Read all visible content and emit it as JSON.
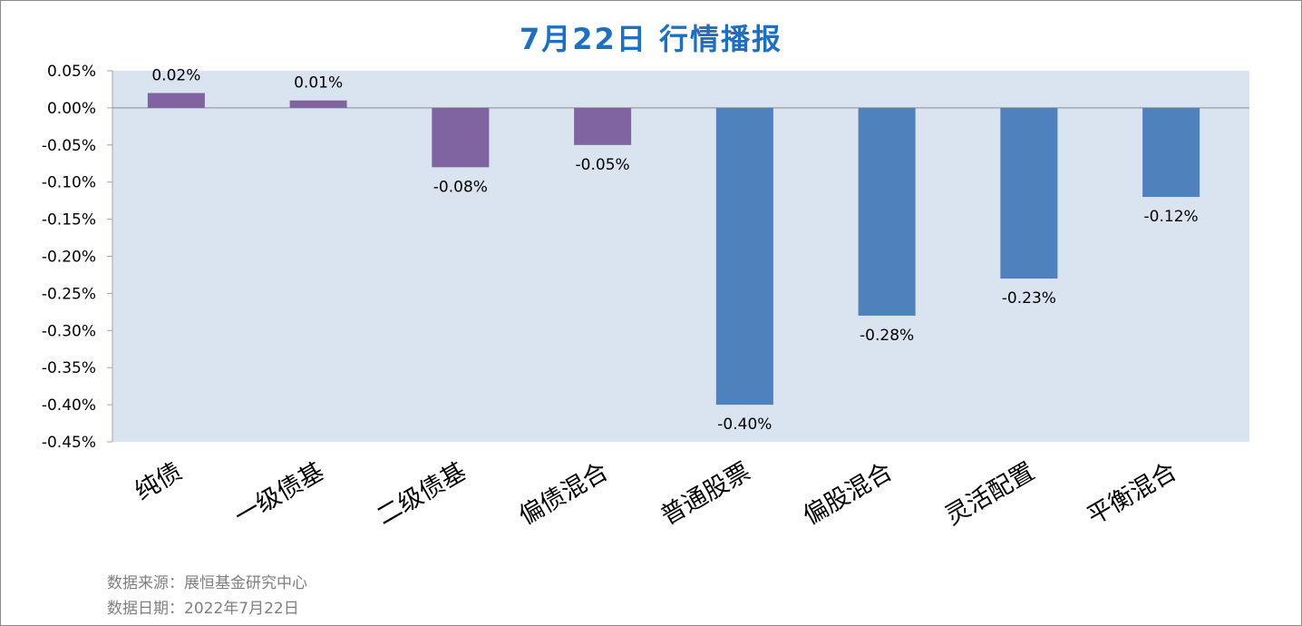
{
  "chart_data": {
    "type": "bar",
    "title": "7月22日  行情播报",
    "categories": [
      "纯债",
      "一级债基",
      "二级债基",
      "偏债混合",
      "普通股票",
      "偏股混合",
      "灵活配置",
      "平衡混合"
    ],
    "values": [
      0.02,
      0.01,
      -0.08,
      -0.05,
      -0.4,
      -0.28,
      -0.23,
      -0.12
    ],
    "data_labels": [
      "0.02%",
      "0.01%",
      "-0.08%",
      "-0.05%",
      "-0.40%",
      "-0.28%",
      "-0.23%",
      "-0.12%"
    ],
    "y_ticks": [
      "0.05%",
      "0.00%",
      "-0.05%",
      "-0.10%",
      "-0.15%",
      "-0.20%",
      "-0.25%",
      "-0.30%",
      "-0.35%",
      "-0.40%",
      "-0.45%"
    ],
    "ylim": [
      -0.45,
      0.05
    ],
    "unit": "%",
    "xlabel": "",
    "ylabel": "",
    "grid": false,
    "colors": {
      "plot_background": "#dae3f0",
      "bond_bars": "#8064a2",
      "equity_bars": "#4f81bd",
      "title": "#1f6fc1"
    },
    "bar_color_groups": [
      "bond",
      "bond",
      "bond",
      "bond",
      "equity",
      "equity",
      "equity",
      "equity"
    ]
  },
  "footer": {
    "source": "数据来源：展恒基金研究中心",
    "date": "数据日期：2022年7月22日"
  }
}
